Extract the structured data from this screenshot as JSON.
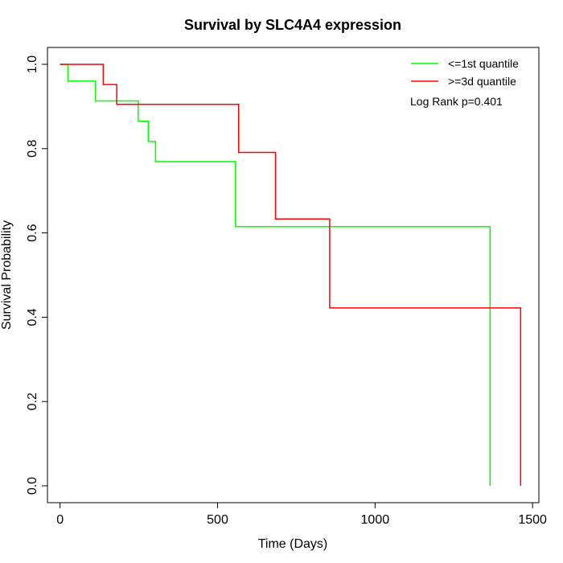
{
  "chart_data": {
    "type": "line",
    "title": "Survival by SLC4A4 expression",
    "xlabel": "Time (Days)",
    "ylabel": "Survival Probability",
    "xlim": [
      -40,
      1520
    ],
    "ylim": [
      -0.04,
      1.04
    ],
    "xticks": [
      0,
      500,
      1000,
      1500
    ],
    "yticks": [
      0.0,
      0.2,
      0.4,
      0.6,
      0.8,
      1.0
    ],
    "xtick_labels": [
      "0",
      "500",
      "1000",
      "1500"
    ],
    "ytick_labels": [
      "0.0",
      "0.2",
      "0.4",
      "0.6",
      "0.8",
      "1.0"
    ],
    "grid": false,
    "legend_position": "top-right",
    "annotation": "Log Rank p=0.401",
    "series": [
      {
        "name": "<=1st quantile",
        "color": "#00ff00",
        "step": true,
        "points": [
          [
            0,
            1.0
          ],
          [
            25,
            0.96
          ],
          [
            112,
            0.913
          ],
          [
            248,
            0.865
          ],
          [
            280,
            0.817
          ],
          [
            303,
            0.769
          ],
          [
            557,
            0.615
          ],
          [
            1365,
            0.0
          ]
        ]
      },
      {
        "name": ">=3d quantile",
        "color": "#ff0000",
        "step": true,
        "points": [
          [
            0,
            1.0
          ],
          [
            137,
            0.952
          ],
          [
            180,
            0.905
          ],
          [
            567,
            0.791
          ],
          [
            684,
            0.633
          ],
          [
            856,
            0.422
          ],
          [
            1462,
            0.0
          ]
        ]
      }
    ]
  }
}
